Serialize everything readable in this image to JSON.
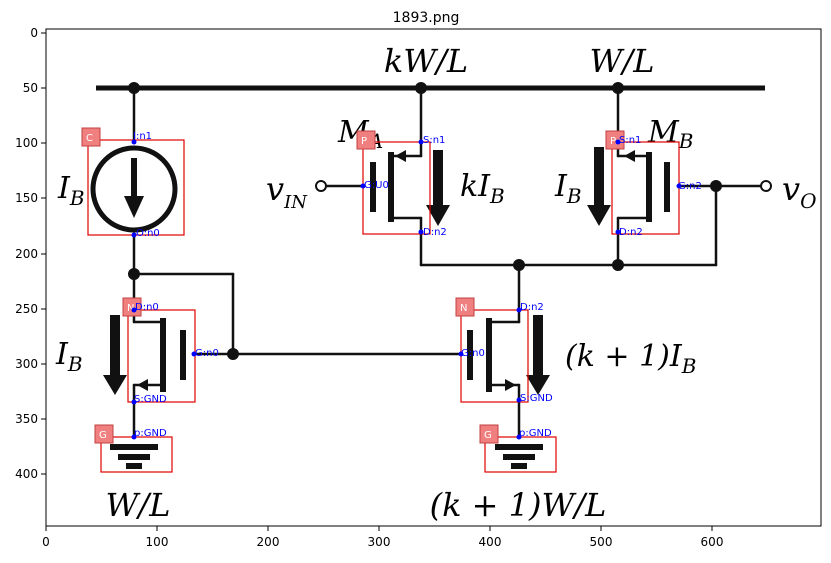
{
  "title": "1893.png",
  "axes": {
    "x_ticks": [
      "0",
      "100",
      "200",
      "300",
      "400",
      "500",
      "600"
    ],
    "y_ticks": [
      "0",
      "50",
      "100",
      "150",
      "200",
      "250",
      "300",
      "350",
      "400"
    ]
  },
  "labels": {
    "kWL": "kW/L",
    "WL_top": "W/L",
    "MA": "M",
    "MA_sub": "A",
    "MB": "M",
    "MB_sub": "B",
    "IB_left": "I",
    "IB_left_sub": "B",
    "vIN": "v",
    "vIN_sub": "IN",
    "kIB": "kI",
    "kIB_sub": "B",
    "IB_mid": "I",
    "IB_mid_sub": "B",
    "vO": "v",
    "vO_sub": "O",
    "IB_low": "I",
    "IB_low_sub": "B",
    "k1IB": "(k + 1)I",
    "k1IB_sub": "B",
    "WL_bottom": "W/L",
    "k1WL": "(k + 1)W/L"
  },
  "components": [
    {
      "tag": "C",
      "pins": [
        "I:n1",
        "O:n0"
      ]
    },
    {
      "tag": "P",
      "pins": [
        "S:n1",
        "G:U0",
        "D:n2"
      ]
    },
    {
      "tag": "P",
      "pins": [
        "S:n1",
        "G:n2",
        "D:n2"
      ]
    },
    {
      "tag": "N",
      "pins": [
        "D:n0",
        "G:n0",
        "S:GND"
      ]
    },
    {
      "tag": "N",
      "pins": [
        "D:n2",
        "G:n0",
        "S:GND"
      ]
    },
    {
      "tag": "G",
      "pins": [
        "p:GND"
      ]
    },
    {
      "tag": "G",
      "pins": [
        "p:GND"
      ]
    }
  ]
}
